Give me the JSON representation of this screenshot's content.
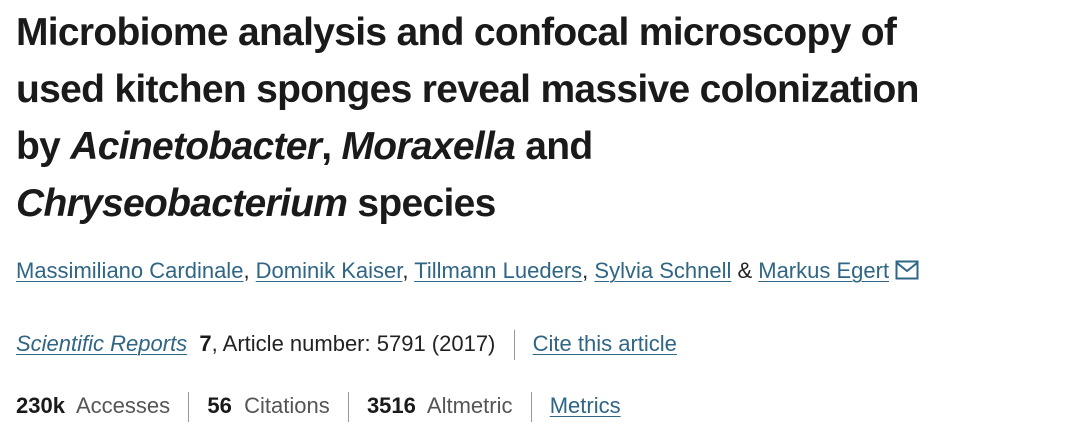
{
  "title": {
    "line1": "Microbiome analysis and confocal microscopy of",
    "line2": "used kitchen sponges reveal massive colonization",
    "line3_pre": "by ",
    "line3_genus1": "Acinetobacter",
    "line3_comma": ", ",
    "line3_genus2": "Moraxella",
    "line3_post": " and",
    "line4_genus3": "Chryseobacterium",
    "line4_post": " species"
  },
  "authors": [
    {
      "name": "Massimiliano Cardinale"
    },
    {
      "name": "Dominik Kaiser"
    },
    {
      "name": "Tillmann Lueders"
    },
    {
      "name": "Sylvia Schnell"
    },
    {
      "name": "Markus Egert"
    }
  ],
  "authors_sep": ", ",
  "authors_and": " & ",
  "journal": {
    "name": "Scientific Reports",
    "volume": "7",
    "article": ", Article number: 5791 (2017)",
    "cite": "Cite this article"
  },
  "metrics": {
    "accesses_value": "230k",
    "accesses_label": "Accesses",
    "citations_value": "56",
    "citations_label": "Citations",
    "altmetric_value": "3516",
    "altmetric_label": "Altmetric",
    "metrics_link": "Metrics"
  },
  "icons": {
    "corresponding_author": "envelope-icon"
  },
  "colors": {
    "link": "#2f6585",
    "text": "#222222"
  }
}
